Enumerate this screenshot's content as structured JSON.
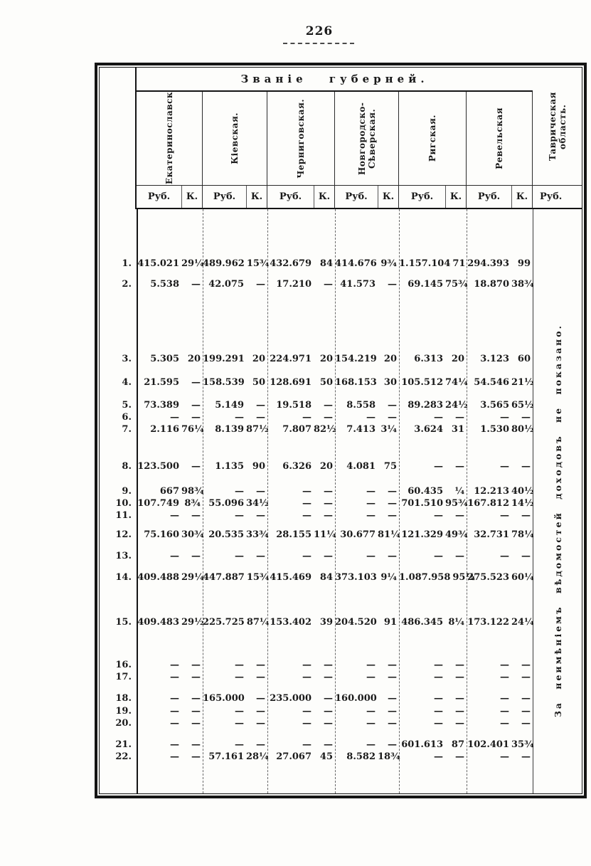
{
  "page": {
    "number": "226"
  },
  "table": {
    "title": "Званіе губерней.",
    "columns": [
      "Екатеринославская.",
      "Кіевская.",
      "Черниговская.",
      "Новгородско-Сѣверская.",
      "Ригская.",
      "Ревельская"
    ],
    "tavricheskaya": "Таврическая область.",
    "subheader": {
      "rub": "Руб.",
      "kop": "К."
    },
    "corner_note": "За неимѣніемъ вѣдомостей доходовъ не показано.",
    "row_gaps": [
      68,
      12,
      88,
      16,
      15,
      0,
      0,
      35,
      18,
      0,
      0,
      10,
      13,
      13,
      46,
      43,
      0,
      13,
      1,
      0,
      13,
      0
    ],
    "rows": [
      {
        "num": "1.",
        "cells": [
          [
            "415.021",
            "29¼"
          ],
          [
            "489.962",
            "15¾"
          ],
          [
            "432.679",
            "84"
          ],
          [
            "414.676",
            "9¾"
          ],
          [
            "1.157.104",
            "71"
          ],
          [
            "294.393",
            "99"
          ]
        ]
      },
      {
        "num": "2.",
        "cells": [
          [
            "5.538",
            "—"
          ],
          [
            "42.075",
            "—"
          ],
          [
            "17.210",
            "—"
          ],
          [
            "41.573",
            "—"
          ],
          [
            "69.145",
            "75¾"
          ],
          [
            "18.870",
            "38¾"
          ]
        ]
      },
      {
        "num": "3.",
        "cells": [
          [
            "5.305",
            "20"
          ],
          [
            "199.291",
            "20"
          ],
          [
            "224.971",
            "20"
          ],
          [
            "154.219",
            "20"
          ],
          [
            "6.313",
            "20"
          ],
          [
            "3.123",
            "60"
          ]
        ]
      },
      {
        "num": "4.",
        "cells": [
          [
            "21.595",
            "—"
          ],
          [
            "158.539",
            "50"
          ],
          [
            "128.691",
            "50"
          ],
          [
            "168.153",
            "30"
          ],
          [
            "105.512",
            "74¼"
          ],
          [
            "54.546",
            "21½"
          ]
        ]
      },
      {
        "num": "5.",
        "cells": [
          [
            "73.389",
            "—"
          ],
          [
            "5.149",
            "—"
          ],
          [
            "19.518",
            "—"
          ],
          [
            "8.558",
            "—"
          ],
          [
            "89.283",
            "24½"
          ],
          [
            "3.565",
            "65½"
          ]
        ]
      },
      {
        "num": "6.",
        "cells": [
          [
            "—",
            "—"
          ],
          [
            "—",
            "—"
          ],
          [
            "—",
            "—"
          ],
          [
            "—",
            "—"
          ],
          [
            "—",
            "—"
          ],
          [
            "—",
            "—"
          ]
        ]
      },
      {
        "num": "7.",
        "cells": [
          [
            "2.116",
            "76¼"
          ],
          [
            "8.139",
            "87½"
          ],
          [
            "7.807",
            "82½"
          ],
          [
            "7.413",
            "3¼"
          ],
          [
            "3.624",
            "31"
          ],
          [
            "1.530",
            "80½"
          ]
        ]
      },
      {
        "num": "8.",
        "cells": [
          [
            "123.500",
            "—"
          ],
          [
            "1.135",
            "90"
          ],
          [
            "6.326",
            "20"
          ],
          [
            "4.081",
            "75"
          ],
          [
            "—",
            "—"
          ],
          [
            "—",
            "—"
          ]
        ]
      },
      {
        "num": "9.",
        "cells": [
          [
            "667",
            "98¾"
          ],
          [
            "—",
            "—"
          ],
          [
            "—",
            "—"
          ],
          [
            "—",
            "—"
          ],
          [
            "60.435",
            "¼"
          ],
          [
            "12.213",
            "40½"
          ]
        ]
      },
      {
        "num": "10.",
        "cells": [
          [
            "107.749",
            "8¾"
          ],
          [
            "55.096",
            "34½"
          ],
          [
            "—",
            "—"
          ],
          [
            "—",
            "—"
          ],
          [
            "701.510",
            "95¾"
          ],
          [
            "167.812",
            "14½"
          ]
        ]
      },
      {
        "num": "11.",
        "cells": [
          [
            "—",
            "—"
          ],
          [
            "—",
            "—"
          ],
          [
            "—",
            "—"
          ],
          [
            "—",
            "—"
          ],
          [
            "—",
            "—"
          ],
          [
            "—",
            "—"
          ]
        ]
      },
      {
        "num": "12.",
        "cells": [
          [
            "75.160",
            "30¾"
          ],
          [
            "20.535",
            "33¾"
          ],
          [
            "28.155",
            "11¼"
          ],
          [
            "30.677",
            "81¼"
          ],
          [
            "121.329",
            "49¾"
          ],
          [
            "32.731",
            "78¼"
          ]
        ]
      },
      {
        "num": "13.",
        "cells": [
          [
            "—",
            "—"
          ],
          [
            "—",
            "—"
          ],
          [
            "—",
            "—"
          ],
          [
            "—",
            "—"
          ],
          [
            "—",
            "—"
          ],
          [
            "—",
            "—"
          ]
        ]
      },
      {
        "num": "14.",
        "cells": [
          [
            "409.488",
            "29¼"
          ],
          [
            "447.887",
            "15¾"
          ],
          [
            "415.469",
            "84"
          ],
          [
            "373.103",
            "9¼"
          ],
          [
            "1.087.958",
            "95¼"
          ],
          [
            "275.523",
            "60¼"
          ]
        ]
      },
      {
        "num": "15.",
        "cells": [
          [
            "409.483",
            "29½"
          ],
          [
            "225.725",
            "87¼"
          ],
          [
            "153.402",
            "39"
          ],
          [
            "204.520",
            "91"
          ],
          [
            "486.345",
            "8¼"
          ],
          [
            "173.122",
            "24¼"
          ]
        ]
      },
      {
        "num": "16.",
        "cells": [
          [
            "—",
            "—"
          ],
          [
            "—",
            "—"
          ],
          [
            "—",
            "—"
          ],
          [
            "—",
            "—"
          ],
          [
            "—",
            "—"
          ],
          [
            "—",
            "—"
          ]
        ]
      },
      {
        "num": "17.",
        "cells": [
          [
            "—",
            "—"
          ],
          [
            "—",
            "—"
          ],
          [
            "—",
            "—"
          ],
          [
            "—",
            "—"
          ],
          [
            "—",
            "—"
          ],
          [
            "—",
            "—"
          ]
        ]
      },
      {
        "num": "18.",
        "cells": [
          [
            "—",
            "—"
          ],
          [
            "165.000",
            "—"
          ],
          [
            "235.000",
            "—"
          ],
          [
            "160.000",
            "—"
          ],
          [
            "—",
            "—"
          ],
          [
            "—",
            "—"
          ]
        ]
      },
      {
        "num": "19.",
        "cells": [
          [
            "—",
            "—"
          ],
          [
            "—",
            "—"
          ],
          [
            "—",
            "—"
          ],
          [
            "—",
            "—"
          ],
          [
            "—",
            "—"
          ],
          [
            "—",
            "—"
          ]
        ]
      },
      {
        "num": "20.",
        "cells": [
          [
            "—",
            "—"
          ],
          [
            "—",
            "—"
          ],
          [
            "—",
            "—"
          ],
          [
            "—",
            "—"
          ],
          [
            "—",
            "—"
          ],
          [
            "—",
            "—"
          ]
        ]
      },
      {
        "num": "21.",
        "cells": [
          [
            "—",
            "—"
          ],
          [
            "—",
            "—"
          ],
          [
            "—",
            "—"
          ],
          [
            "—",
            "—"
          ],
          [
            "601.613",
            "87"
          ],
          [
            "102.401",
            "35¾"
          ]
        ]
      },
      {
        "num": "22.",
        "cells": [
          [
            "—",
            "—"
          ],
          [
            "57.161",
            "28¼"
          ],
          [
            "27.067",
            "45"
          ],
          [
            "8.582",
            "18¾"
          ],
          [
            "—",
            "—"
          ],
          [
            "—",
            "—"
          ]
        ]
      }
    ]
  }
}
